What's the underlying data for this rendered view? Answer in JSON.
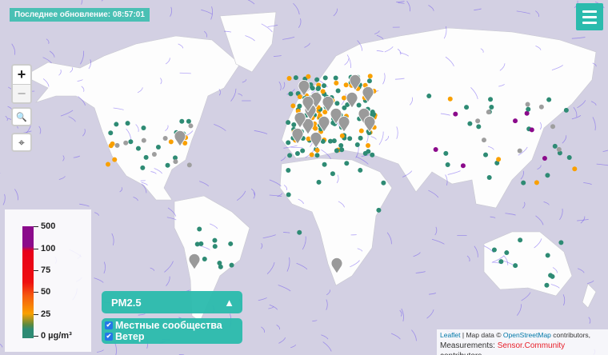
{
  "header": {
    "last_update_label": "Последнее обновление: 08:57:01"
  },
  "menu_button": {
    "icon": "hamburger-icon",
    "color": "#2bbbad"
  },
  "controls": {
    "zoom_in": "+",
    "zoom_out": "−",
    "search_icon": "search-icon",
    "locate_icon": "crosshair-icon"
  },
  "legend": {
    "ticks": [
      "500",
      "100",
      "75",
      "50",
      "25",
      "0 µg/m³"
    ],
    "colors": {
      "good": "#2e8b74",
      "moderate": "#f9a000",
      "high": "#e8001a",
      "very_high": "#8b0a8b",
      "inactive": "#9e9e9e"
    }
  },
  "pollutant_selector": {
    "selected": "PM2.5",
    "arrow": "▲"
  },
  "layers": [
    {
      "label": "Местные сообщества",
      "checked": true
    },
    {
      "label": "Ветер",
      "checked": true
    }
  ],
  "attribution": {
    "leaflet": "Leaflet",
    "sep": " | Map data © ",
    "osm": "OpenStreetMap",
    "contrib": " contributors,",
    "measure": "Measurements: ",
    "sc": "Sensor.Community",
    "contrib2": " contributors"
  }
}
